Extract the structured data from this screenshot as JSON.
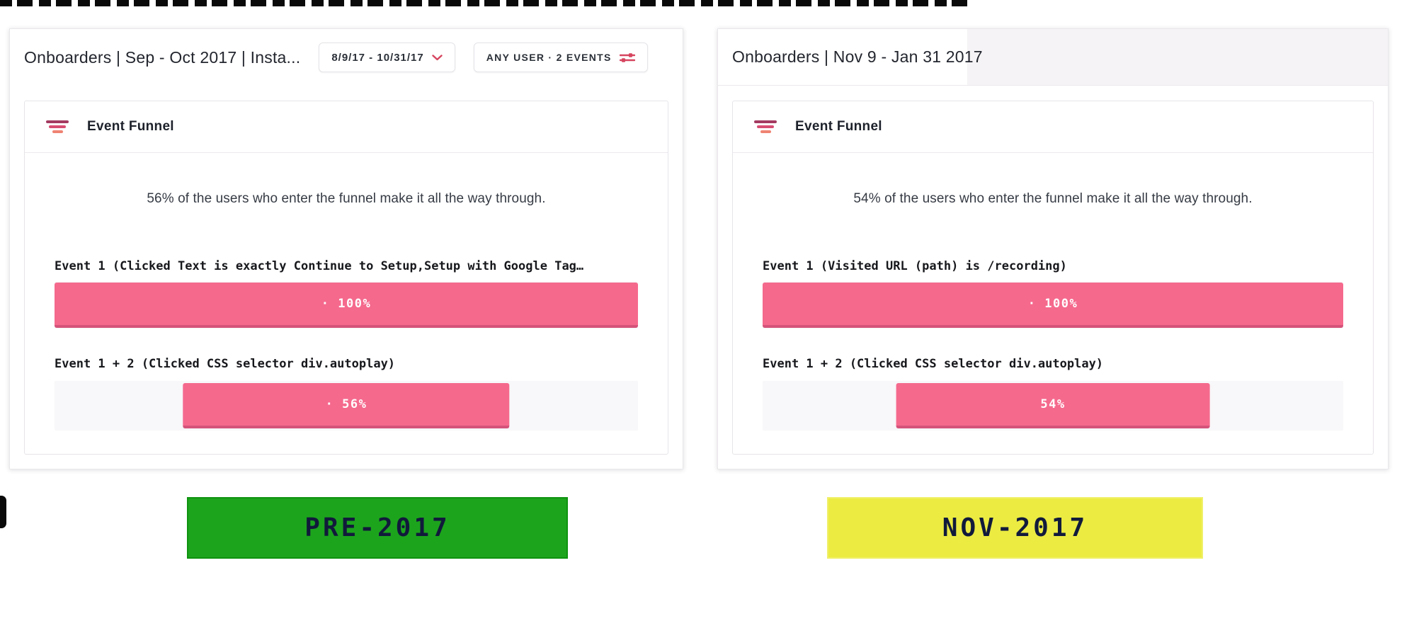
{
  "panels": {
    "left": {
      "title": "Onboarders | Sep - Oct 2017 | Insta...",
      "date_button_label": "8/9/17 - 10/31/17",
      "filter_button_label": "ANY USER · 2 EVENTS",
      "widget": {
        "title": "Event Funnel",
        "summary": "56% of the users who enter the funnel make it all the way through.",
        "steps": [
          {
            "label": "Event 1 (Clicked Text is exactly Continue to Setup,Setup with Google Tag…",
            "value_label": "· 100%",
            "percent": 100
          },
          {
            "label": "Event 1 + 2 (Clicked CSS selector div.autoplay)",
            "value_label": "· 56%",
            "percent": 56
          }
        ]
      },
      "tag_label": "PRE-2017"
    },
    "right": {
      "title": "Onboarders | Nov 9 - Jan 31 2017",
      "widget": {
        "title": "Event Funnel",
        "summary": "54% of the users who enter the funnel make it all the way through.",
        "steps": [
          {
            "label": "Event 1 (Visited URL (path) is /recording)",
            "value_label": "· 100%",
            "percent": 100
          },
          {
            "label": "Event 1 + 2 (Clicked CSS selector div.autoplay)",
            "value_label": "54%",
            "percent": 54
          }
        ]
      },
      "tag_label": "NOV-2017"
    }
  },
  "chart_data": [
    {
      "type": "bar",
      "subtype": "funnel",
      "title": "Event Funnel",
      "group_label": "PRE-2017",
      "categories": [
        "Event 1 (Clicked Text is exactly Continue to Setup,Setup with Google Tag…",
        "Event 1 + 2 (Clicked CSS selector div.autoplay)"
      ],
      "values": [
        100,
        56
      ],
      "unit": "%",
      "annotation": "56% of the users who enter the funnel make it all the way through."
    },
    {
      "type": "bar",
      "subtype": "funnel",
      "title": "Event Funnel",
      "group_label": "NOV-2017",
      "categories": [
        "Event 1 (Visited URL (path) is /recording)",
        "Event 1 + 2 (Clicked CSS selector div.autoplay)"
      ],
      "values": [
        100,
        54
      ],
      "unit": "%",
      "annotation": "54% of the users who enter the funnel make it all the way through."
    }
  ],
  "colors": {
    "bar_fill": "#f5698d",
    "bar_edge": "#d5537a",
    "accent_red": "#d6455f",
    "tag_green": "#1da41d",
    "tag_yellow": "#ebeb42"
  }
}
